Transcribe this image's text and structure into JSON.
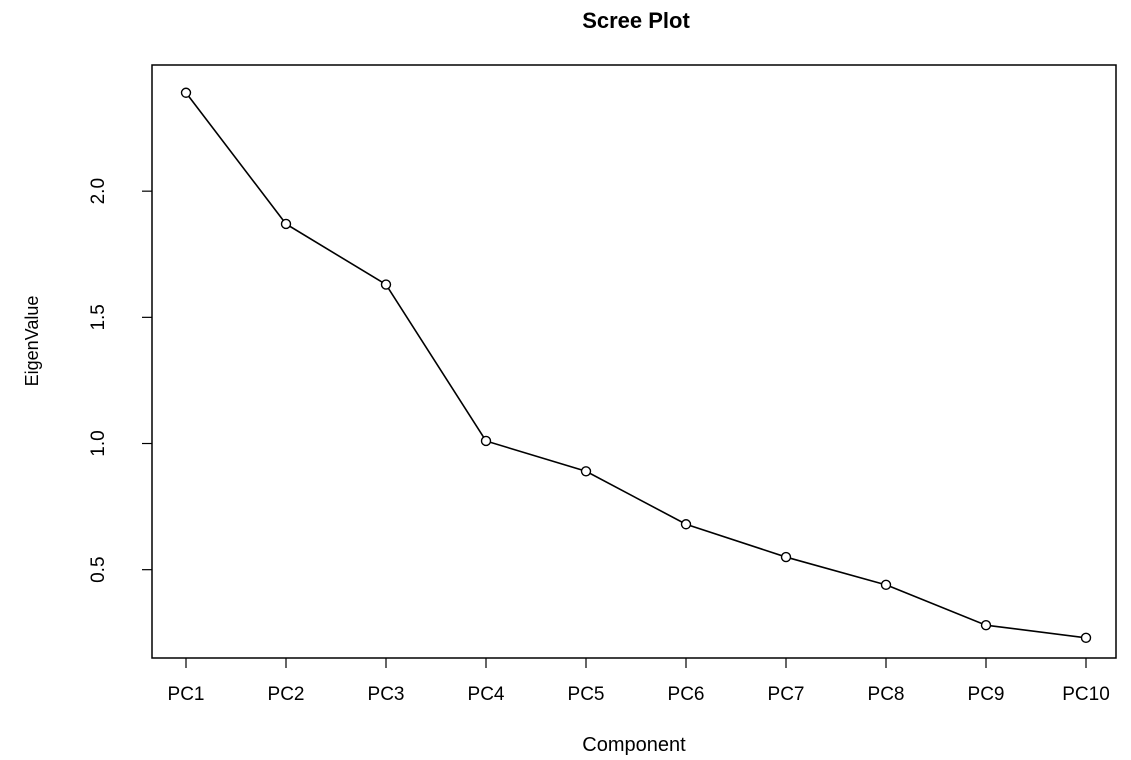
{
  "chart_data": {
    "type": "line",
    "title": "Scree Plot",
    "xlabel": "Component",
    "ylabel": "EigenValue",
    "categories": [
      "PC1",
      "PC2",
      "PC3",
      "PC4",
      "PC5",
      "PC6",
      "PC7",
      "PC8",
      "PC9",
      "PC10"
    ],
    "series": [
      {
        "values": [
          2.39,
          1.87,
          1.63,
          1.01,
          0.89,
          0.68,
          0.55,
          0.44,
          0.28,
          0.23
        ]
      }
    ],
    "yticks": [
      0.5,
      1.0,
      1.5,
      2.0
    ],
    "ytick_labels": [
      "0.5",
      "1.0",
      "1.5",
      "2.0"
    ],
    "ylim": [
      0.15,
      2.5
    ],
    "grid": false,
    "marker": "open-circle",
    "line_color": "#000000"
  }
}
